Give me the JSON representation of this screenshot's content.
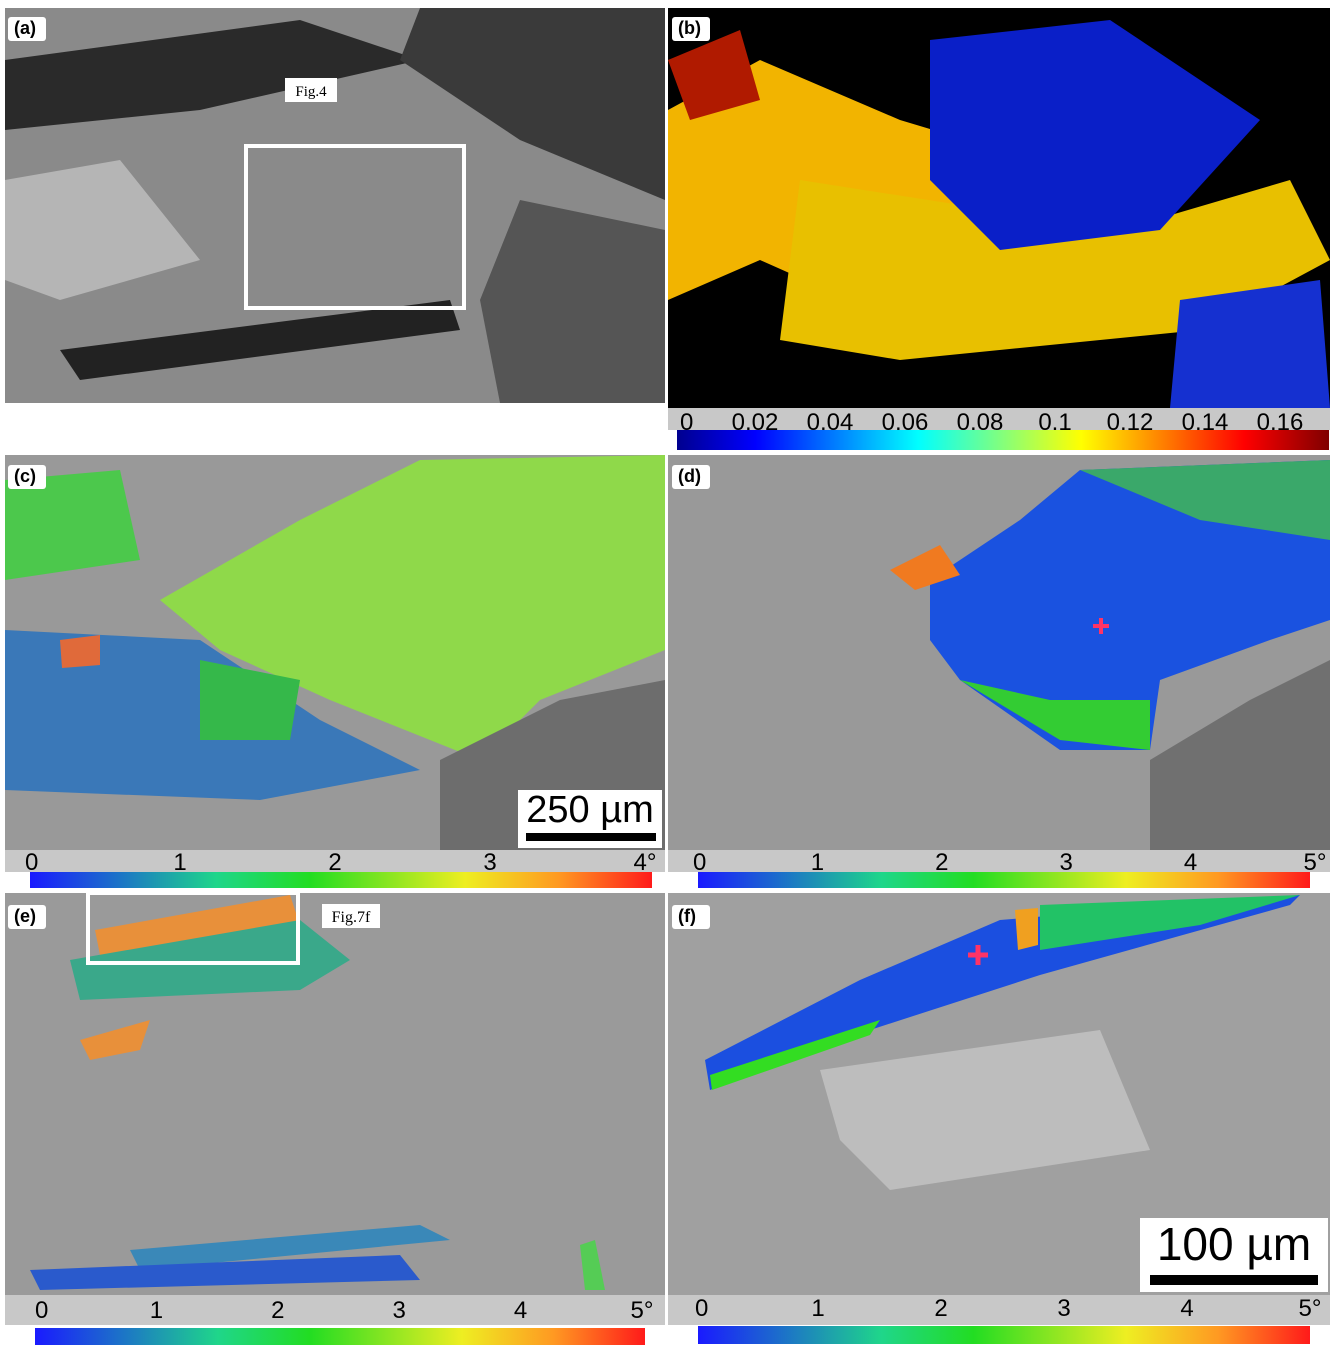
{
  "panels": [
    {
      "label": "(a)",
      "annotation": "Fig.4"
    },
    {
      "label": "(b)",
      "colorbar_ticks": [
        "0",
        "0.02",
        "0.04",
        "0.06",
        "0.08",
        "0.1",
        "0.12",
        "0.14",
        "0.16"
      ]
    },
    {
      "label": "(c)",
      "scale_bar": "250 µm",
      "colorbar_ticks": [
        "0",
        "1",
        "2",
        "3",
        "4°"
      ]
    },
    {
      "label": "(d)",
      "colorbar_ticks": [
        "0",
        "1",
        "2",
        "3",
        "4",
        "5°"
      ]
    },
    {
      "label": "(e)",
      "annotation": "Fig.7f",
      "colorbar_ticks": [
        "0",
        "1",
        "2",
        "3",
        "4",
        "5°"
      ]
    },
    {
      "label": "(f)",
      "scale_bar": "100 µm",
      "colorbar_ticks": [
        "0",
        "1",
        "2",
        "3",
        "4",
        "5°"
      ]
    }
  ]
}
